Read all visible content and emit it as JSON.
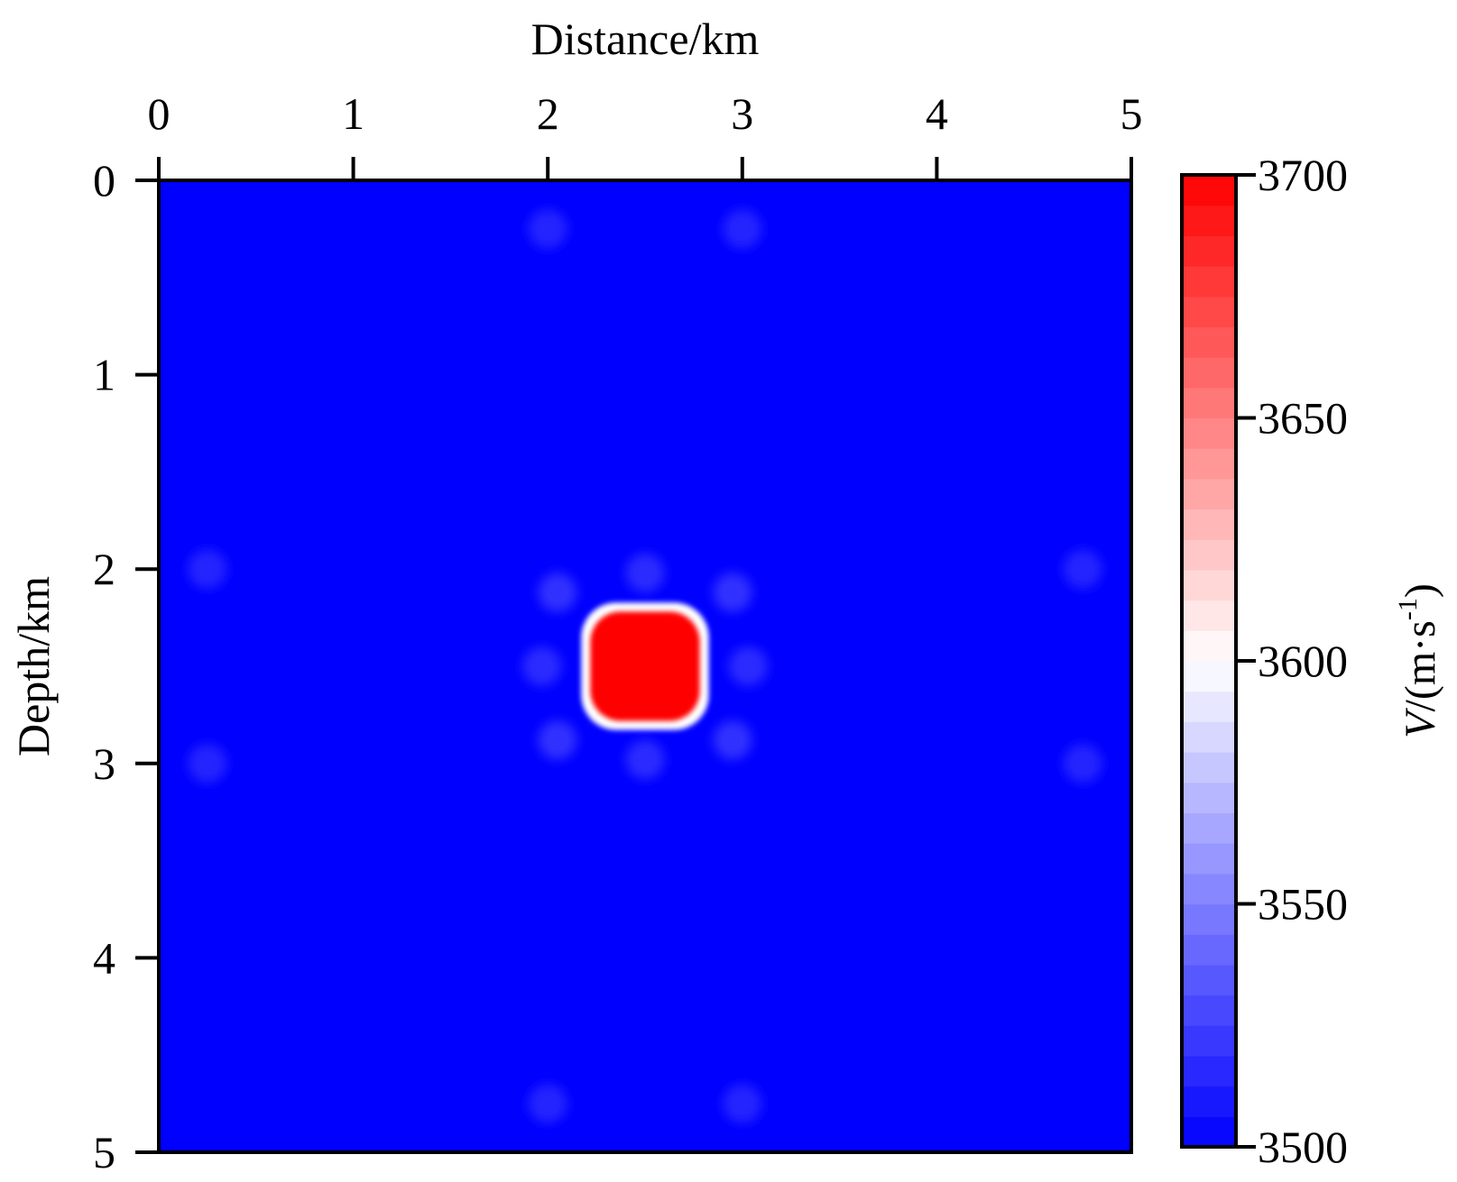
{
  "chart_data": {
    "type": "heatmap",
    "title": "",
    "xlabel": "Distance/km",
    "ylabel": "Depth/km",
    "x_axis_position": "top",
    "y_axis_direction": "downward",
    "xlim": [
      0,
      5
    ],
    "ylim": [
      0,
      5
    ],
    "x_ticks": [
      0,
      1,
      2,
      3,
      4,
      5
    ],
    "x_tick_labels": [
      "0",
      "1",
      "2",
      "3",
      "4",
      "5"
    ],
    "y_ticks": [
      0,
      1,
      2,
      3,
      4,
      5
    ],
    "y_tick_labels": [
      "0",
      "1",
      "2",
      "3",
      "4",
      "5"
    ],
    "grid": false,
    "background_value": 3500,
    "anomaly": {
      "shape": "rounded square",
      "x_range": [
        2.2,
        2.8
      ],
      "z_range": [
        2.2,
        2.8
      ],
      "value": 3700
    },
    "faint_artifacts": [
      {
        "x": 2.05,
        "z": 2.12,
        "value": 3510
      },
      {
        "x": 2.95,
        "z": 2.12,
        "value": 3510
      },
      {
        "x": 2.05,
        "z": 2.88,
        "value": 3510
      },
      {
        "x": 2.95,
        "z": 2.88,
        "value": 3510
      },
      {
        "x": 2.5,
        "z": 2.02,
        "value": 3508
      },
      {
        "x": 2.5,
        "z": 2.98,
        "value": 3508
      },
      {
        "x": 1.97,
        "z": 2.5,
        "value": 3508
      },
      {
        "x": 3.03,
        "z": 2.5,
        "value": 3508
      },
      {
        "x": 2.0,
        "z": 0.25,
        "value": 3505
      },
      {
        "x": 3.0,
        "z": 0.25,
        "value": 3505
      },
      {
        "x": 2.0,
        "z": 4.75,
        "value": 3505
      },
      {
        "x": 3.0,
        "z": 4.75,
        "value": 3505
      },
      {
        "x": 0.25,
        "z": 2.0,
        "value": 3505
      },
      {
        "x": 0.25,
        "z": 3.0,
        "value": 3505
      },
      {
        "x": 4.75,
        "z": 2.0,
        "value": 3505
      },
      {
        "x": 4.75,
        "z": 3.0,
        "value": 3505
      }
    ],
    "colorbar": {
      "range": [
        3500,
        3700
      ],
      "ticks": [
        3500,
        3550,
        3600,
        3650,
        3700
      ],
      "tick_labels": [
        "3500",
        "3550",
        "3600",
        "3650",
        "3700"
      ],
      "label_prefix": "V",
      "label_suffix": "/(m·s",
      "label_superscript": "-1",
      "label_close": ")",
      "levels": 32,
      "colormap": [
        "#0000ff",
        "#ffffff",
        "#ff0000"
      ]
    }
  }
}
